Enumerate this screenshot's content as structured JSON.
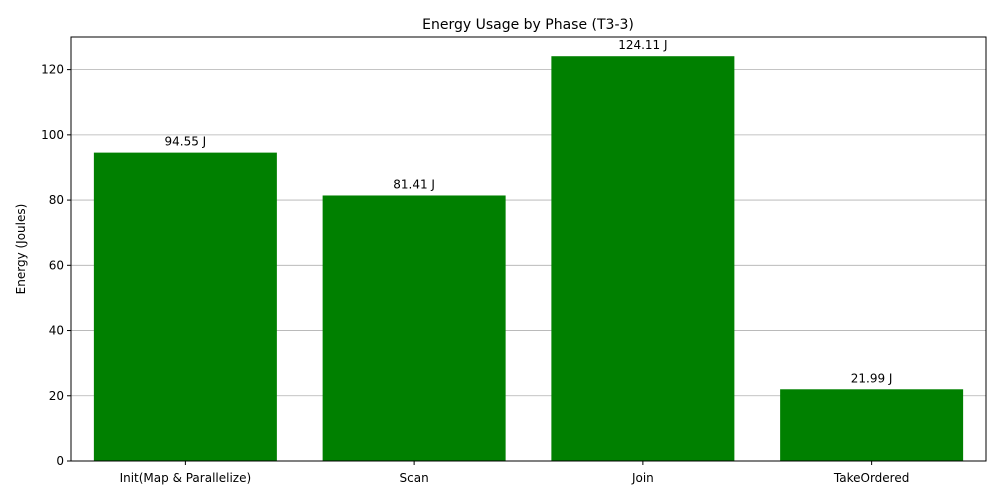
{
  "chart_data": {
    "type": "bar",
    "title": "Energy Usage by Phase (T3-3)",
    "xlabel": "",
    "ylabel": "Energy (Joules)",
    "categories": [
      "Init(Map & Parallelize)",
      "Scan",
      "Join",
      "TakeOrdered"
    ],
    "values": [
      94.55,
      81.41,
      124.11,
      21.99
    ],
    "data_labels": [
      "94.55 J",
      "81.41 J",
      "124.11 J",
      "21.99 J"
    ],
    "ylim": [
      0,
      130
    ],
    "yticks": [
      0,
      20,
      40,
      60,
      80,
      100,
      120
    ],
    "grid": "y",
    "bar_color": "#008000",
    "legend": "none"
  }
}
